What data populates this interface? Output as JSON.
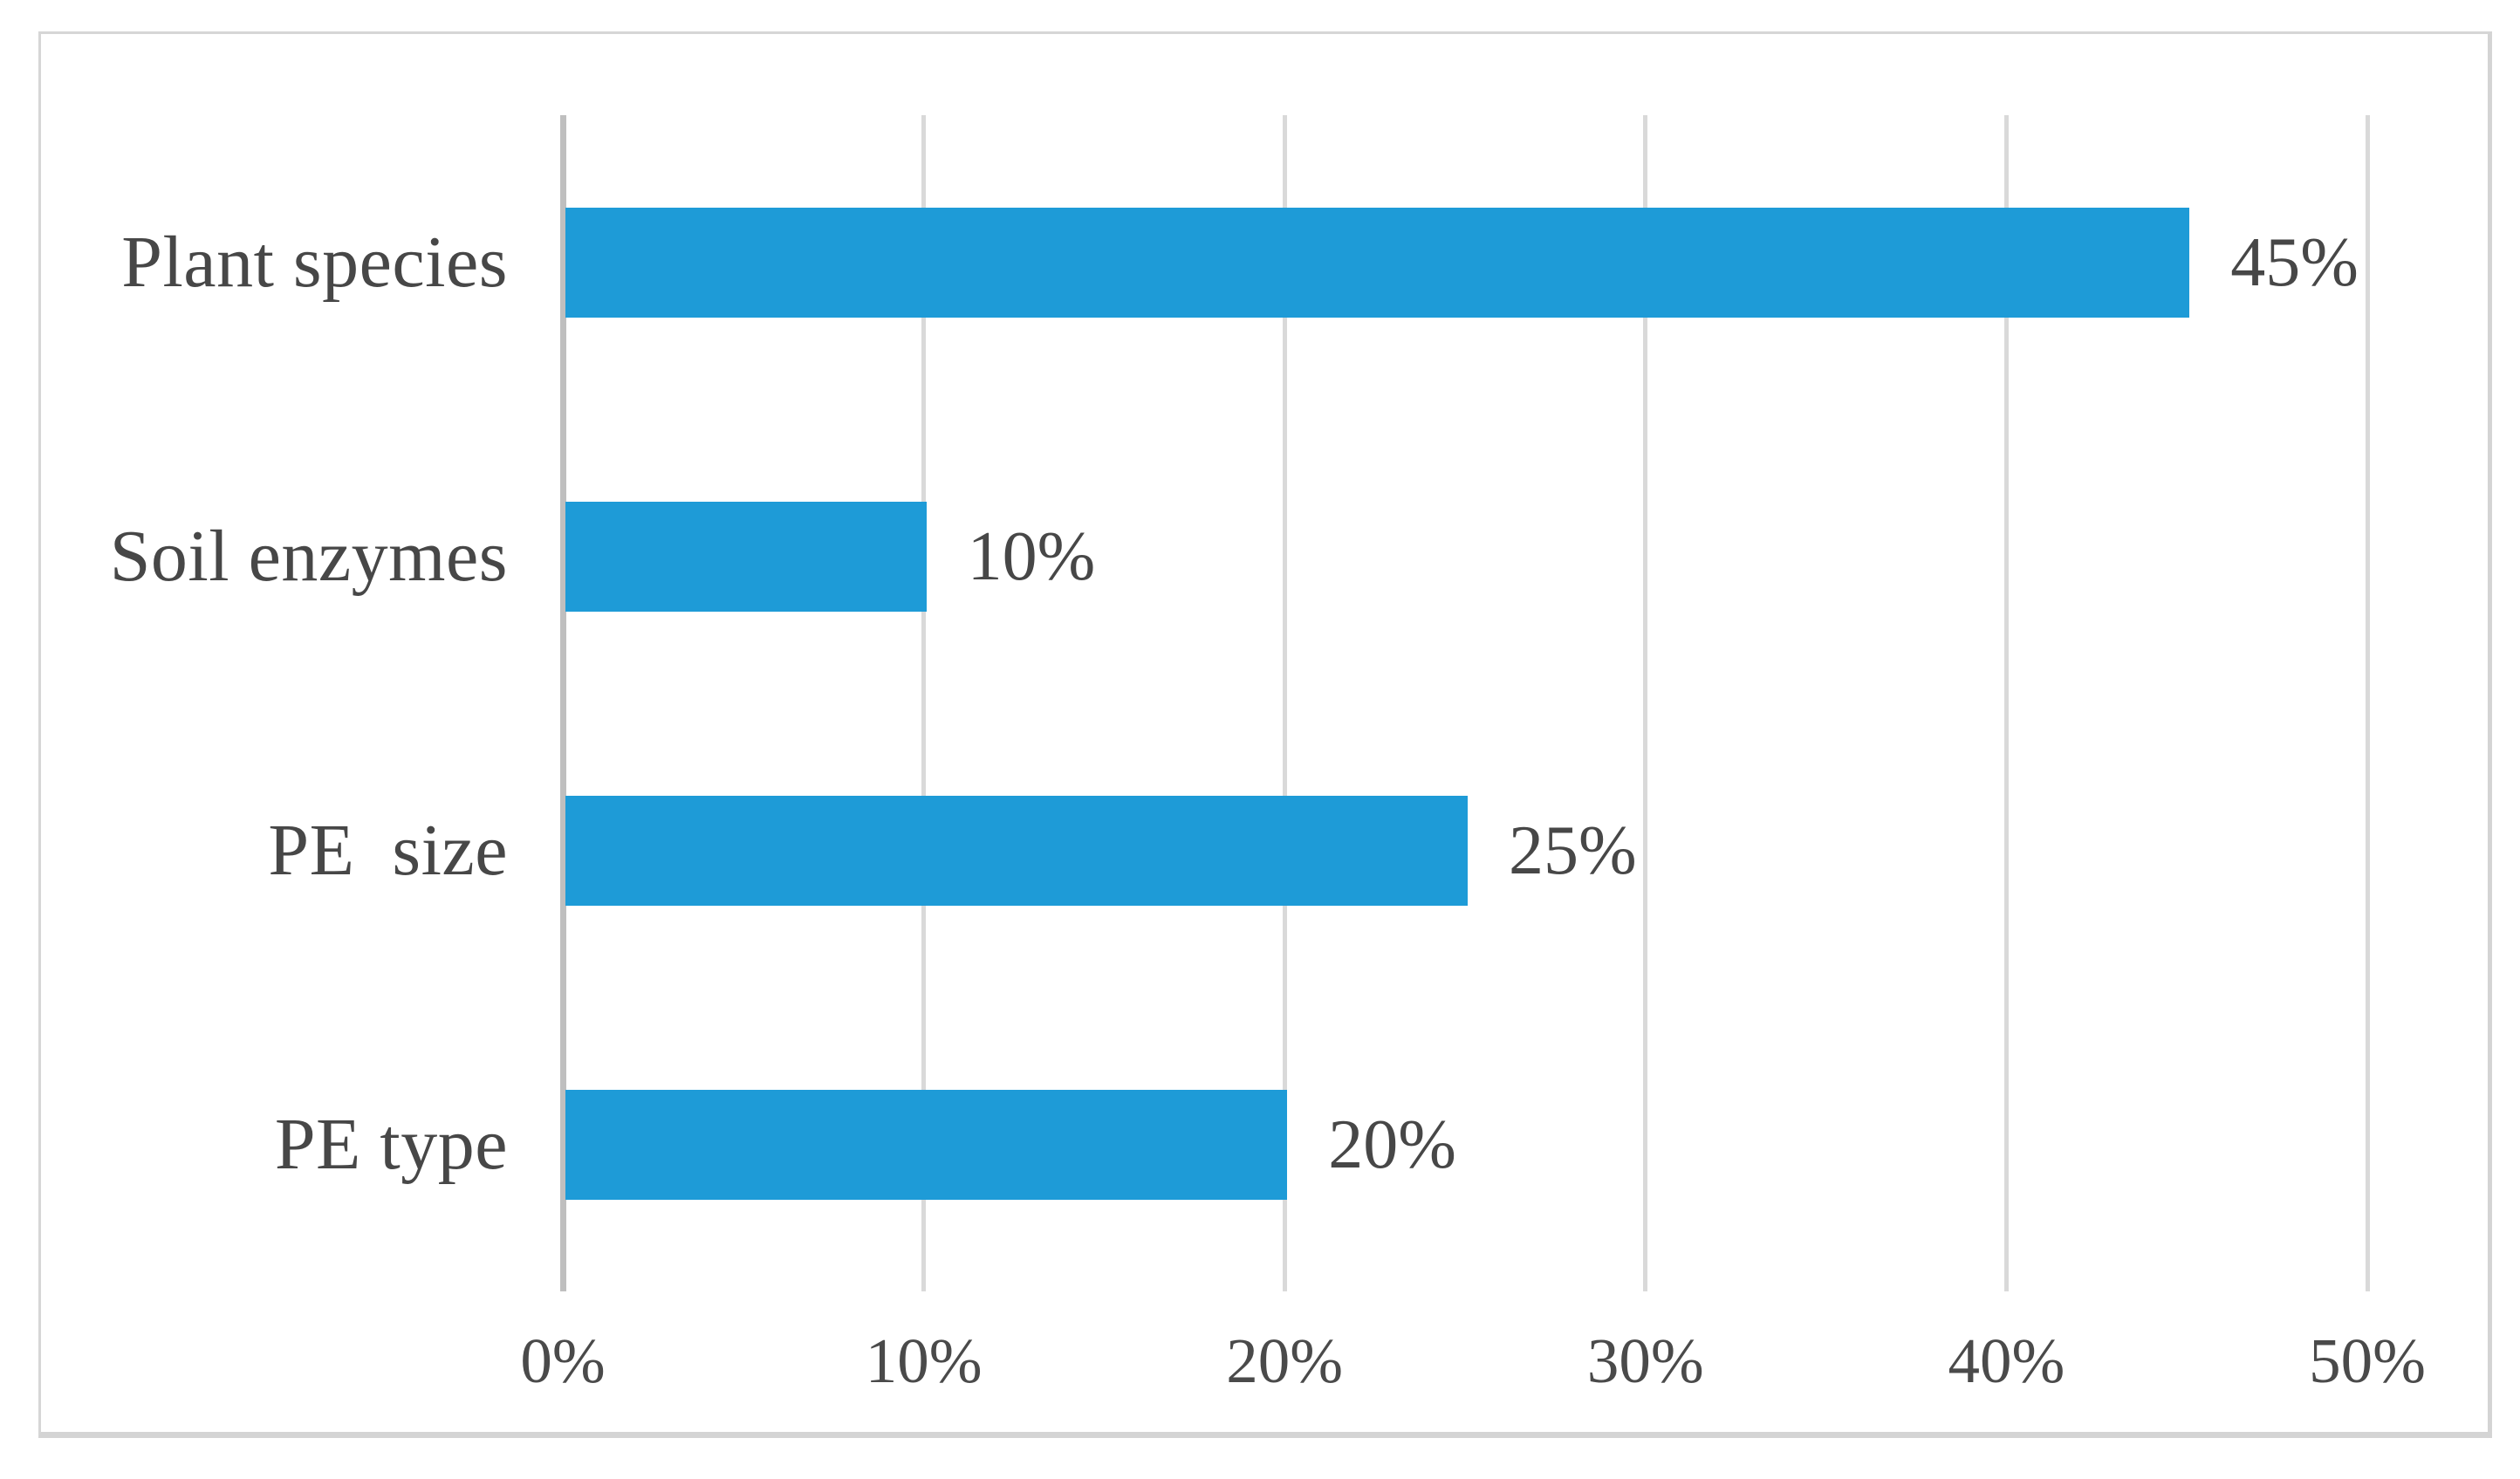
{
  "figure": {
    "background_color": "#ffffff",
    "frame_border_color": "#d5d5d5"
  },
  "chart_data": {
    "type": "bar",
    "orientation": "horizontal",
    "title": "",
    "xlabel": "",
    "ylabel": "",
    "categories": [
      "Plant species",
      "Soil enzymes",
      "PE  size",
      "PE type"
    ],
    "values": [
      45,
      10,
      25,
      20
    ],
    "value_labels": [
      "45%",
      "10%",
      "25%",
      "20%"
    ],
    "x_tick_values": [
      0,
      10,
      20,
      30,
      40,
      50
    ],
    "x_tick_labels": [
      "0%",
      "10%",
      "20%",
      "30%",
      "40%",
      "50%"
    ],
    "xlim": [
      0,
      50
    ],
    "grid": true,
    "legend_position": "none",
    "bar_color": "#1e9bd7",
    "gridline_color": "#d9d9d9",
    "axis_line_color": "#bfbfbf",
    "label_text_color": "#474747",
    "tick_text_color": "#4a4a4a"
  }
}
